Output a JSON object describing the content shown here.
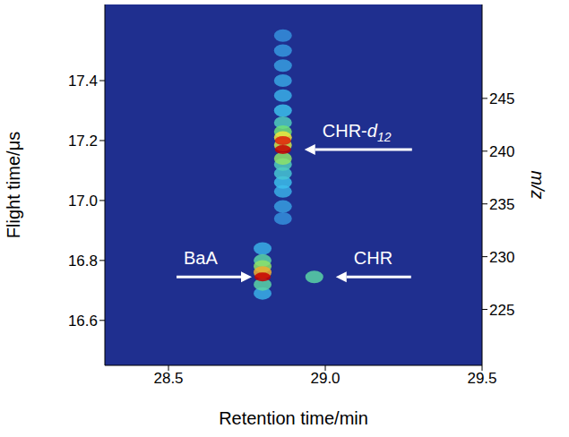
{
  "chart_data": {
    "type": "heatmap",
    "x_label": "Retention time/min",
    "y_label": "Flight time/μs",
    "y2_label": "m/z",
    "xlim": [
      28.297,
      29.5
    ],
    "xticks": [
      28.5,
      {
        "value": 29,
        "label": "29.0"
      },
      29.5
    ],
    "ylim": [
      16.45,
      17.654
    ],
    "yticks": [
      16.6,
      16.8,
      {
        "value": 17,
        "label": "17.0"
      },
      17.2,
      17.4
    ],
    "y2lim": [
      219.7,
      253.9
    ],
    "y2ticks": [
      225,
      230,
      235,
      240,
      245
    ],
    "value_range": [
      0,
      100
    ],
    "color": "#1f2f8f",
    "cells": [
      {
        "x": 28.865,
        "y": 17.55,
        "value": 15
      },
      {
        "x": 28.865,
        "y": 17.5,
        "value": 18
      },
      {
        "x": 28.865,
        "y": 17.45,
        "value": 20
      },
      {
        "x": 28.865,
        "y": 17.4,
        "value": 22
      },
      {
        "x": 28.865,
        "y": 17.35,
        "value": 25
      },
      {
        "x": 28.865,
        "y": 16.94,
        "value": 15
      },
      {
        "x": 28.865,
        "y": 16.98,
        "value": 20
      },
      {
        "x": 28.865,
        "y": 17.03,
        "value": 25
      },
      {
        "x": 28.865,
        "y": 17.06,
        "value": 30
      },
      {
        "x": 28.865,
        "y": 17.3,
        "value": 30
      },
      {
        "x": 28.865,
        "y": 17.09,
        "value": 35
      },
      {
        "x": 28.865,
        "y": 17.26,
        "value": 40
      },
      {
        "x": 28.865,
        "y": 17.12,
        "value": 40
      },
      {
        "x": 28.865,
        "y": 17.23,
        "value": 55
      },
      {
        "x": 28.865,
        "y": 17.14,
        "value": 60
      },
      {
        "x": 28.865,
        "y": 17.185,
        "value": 70
      },
      {
        "x": 28.865,
        "y": 17.21,
        "value": 75
      },
      {
        "x": 28.865,
        "y": 17.2,
        "value": 95
      },
      {
        "x": 28.865,
        "y": 17.17,
        "value": 100
      },
      {
        "x": 28.8,
        "y": 16.84,
        "value": 25
      },
      {
        "x": 28.8,
        "y": 16.69,
        "value": 25
      },
      {
        "x": 28.8,
        "y": 16.8,
        "value": 45
      },
      {
        "x": 28.8,
        "y": 16.72,
        "value": 45
      },
      {
        "x": 28.8,
        "y": 16.78,
        "value": 60
      },
      {
        "x": 28.8,
        "y": 16.76,
        "value": 80
      },
      {
        "x": 28.8,
        "y": 16.745,
        "value": 100
      },
      {
        "x": 28.965,
        "y": 16.745,
        "value": 45
      }
    ],
    "annotations": [
      {
        "text": "BaA",
        "x": 28.8,
        "y": 16.745
      },
      {
        "text": "CHR",
        "x": 28.965,
        "y": 16.745
      },
      {
        "text": "CHR-d12",
        "x": 28.865,
        "y": 17.17
      }
    ]
  }
}
